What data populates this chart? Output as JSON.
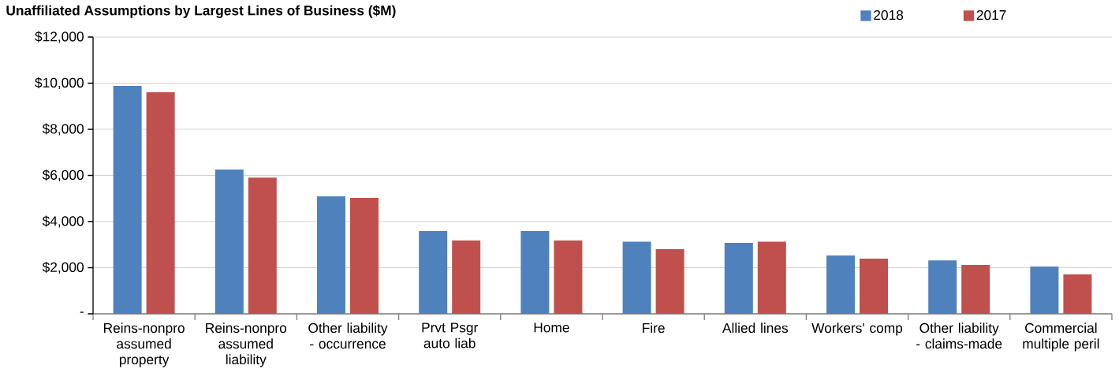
{
  "chart_data": {
    "type": "bar",
    "title": "Unaffiliated Assumptions by Largest Lines of Business ($M)",
    "categories": [
      "Reins-nonpro assumed property",
      "Reins-nonpro assumed liability",
      "Other liability - occurrence",
      "Prvt Psgr auto liab",
      "Home",
      "Fire",
      "Allied lines",
      "Workers' comp",
      "Other liability - claims-made",
      "Commercial multiple peril"
    ],
    "series": [
      {
        "name": "2018",
        "color": "#4f81bd",
        "values": [
          9880,
          6260,
          5090,
          3590,
          3590,
          3130,
          3080,
          2530,
          2320,
          2050
        ]
      },
      {
        "name": "2017",
        "color": "#c0504d",
        "values": [
          9610,
          5910,
          5030,
          3180,
          3180,
          2800,
          3130,
          2390,
          2120,
          1710
        ]
      }
    ],
    "ylim": [
      0,
      12000
    ],
    "yticks": [
      {
        "value": 0,
        "label": "-"
      },
      {
        "value": 2000,
        "label": "$2,000"
      },
      {
        "value": 4000,
        "label": "$4,000"
      },
      {
        "value": 6000,
        "label": "$6,000"
      },
      {
        "value": 8000,
        "label": "$8,000"
      },
      {
        "value": 10000,
        "label": "$10,000"
      },
      {
        "value": 12000,
        "label": "$12,000"
      }
    ],
    "grid": "y",
    "legend": "top right"
  }
}
